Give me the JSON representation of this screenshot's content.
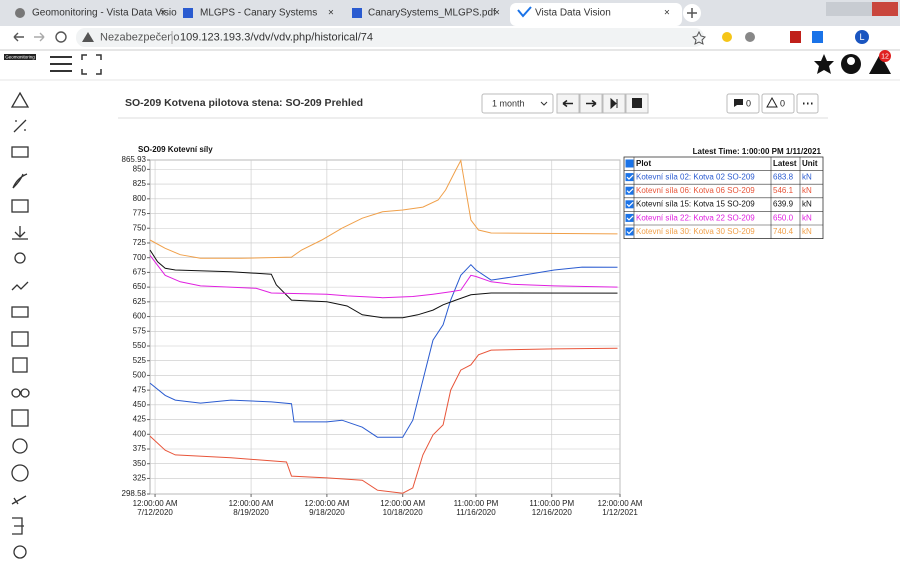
{
  "browser": {
    "tabs": [
      "Geomonitoring - Vista Data Visio",
      "MLGPS - Canary Systems",
      "CanarySystems_MLGPS.pdf",
      "Vista Data Vision"
    ],
    "security": "Nezabezpečeno",
    "url": "109.123.193.3/vdv/vdv.php/historical/74",
    "profile": "L"
  },
  "app": {
    "logo": "Geomonitoring",
    "notifications": "12",
    "page_title": "SO-209 Kotvena pilotova stena: SO-209 Prehled",
    "range": "1 month",
    "comments": "0",
    "alarms": "0"
  },
  "chart_data": {
    "type": "line",
    "title": "SO-209 Kotevní síly",
    "latest_time": "Latest Time: 1:00:00 PM 1/11/2021",
    "legend_headers": [
      "Plot",
      "Latest",
      "Unit"
    ],
    "unit": "kN",
    "xlim": [
      "2020-07-10",
      "2021-01-12"
    ],
    "xticks": [
      {
        "value": "2020-07-12",
        "label": "12:00:00 AM\n7/12/2020"
      },
      {
        "value": "2020-08-19",
        "label": "12:00:00 AM\n8/19/2020"
      },
      {
        "value": "2020-09-18",
        "label": "12:00:00 AM\n9/18/2020"
      },
      {
        "value": "2020-10-18",
        "label": "12:00:00 AM\n10/18/2020"
      },
      {
        "value": "2020-11-16",
        "label": "11:00:00 PM\n11/16/2020"
      },
      {
        "value": "2020-12-16",
        "label": "11:00:00 PM\n12/16/2020"
      },
      {
        "value": "2021-01-12",
        "label": "12:00:00 AM\n1/12/2021"
      }
    ],
    "ylim": [
      298.58,
      865.93
    ],
    "yticks": [
      298.58,
      325,
      350,
      375,
      400,
      425,
      450,
      475,
      500,
      525,
      550,
      575,
      600,
      625,
      650,
      675,
      700,
      725,
      750,
      775,
      800,
      825,
      850,
      865.93
    ],
    "grid": true,
    "series": [
      {
        "name": "Kotevní síla 02: Kotva 02 SO-209",
        "color": "#2a5bd0",
        "latest": "683.8",
        "x": [
          "2020-07-10",
          "2020-07-16",
          "2020-07-20",
          "2020-07-30",
          "2020-08-11",
          "2020-08-27",
          "2020-09-04",
          "2020-09-05",
          "2020-09-18",
          "2020-09-24",
          "2020-10-02",
          "2020-10-08",
          "2020-10-18",
          "2020-10-22",
          "2020-10-26",
          "2020-10-30",
          "2020-11-03",
          "2020-11-06",
          "2020-11-10",
          "2020-11-14",
          "2020-11-16",
          "2020-11-22",
          "2020-11-30",
          "2020-12-17",
          "2020-12-28",
          "2021-01-11"
        ],
        "values": [
          487,
          466,
          458,
          453,
          458,
          455,
          452,
          421,
          421,
          424,
          412,
          395,
          395,
          424,
          492,
          560,
          586,
          628,
          670,
          688,
          679,
          662,
          667,
          679,
          684,
          683.8
        ]
      },
      {
        "name": "Kotevní síla 06: Kotva 06 SO-209",
        "color": "#e8553a",
        "latest": "546.1",
        "x": [
          "2020-07-10",
          "2020-07-16",
          "2020-07-20",
          "2020-08-11",
          "2020-09-02",
          "2020-09-04",
          "2020-09-18",
          "2020-10-02",
          "2020-10-08",
          "2020-10-18",
          "2020-10-22",
          "2020-10-26",
          "2020-10-30",
          "2020-11-03",
          "2020-11-06",
          "2020-11-10",
          "2020-11-14",
          "2020-11-17",
          "2020-11-22",
          "2020-12-17",
          "2021-01-11"
        ],
        "values": [
          397,
          373,
          365,
          360,
          353,
          329,
          326,
          322,
          305,
          300,
          309,
          365,
          399,
          416,
          475,
          509,
          518,
          535,
          543,
          545,
          546.1
        ]
      },
      {
        "name": "Kotevní síla 15: Kotva 15 SO-209",
        "color": "#111111",
        "latest": "639.9",
        "x": [
          "2020-07-10",
          "2020-07-13",
          "2020-07-16",
          "2020-07-20",
          "2020-08-11",
          "2020-08-27",
          "2020-08-29",
          "2020-09-04",
          "2020-09-18",
          "2020-09-26",
          "2020-10-02",
          "2020-10-10",
          "2020-10-18",
          "2020-10-24",
          "2020-10-30",
          "2020-11-03",
          "2020-11-08",
          "2020-11-14",
          "2020-11-22",
          "2021-01-11"
        ],
        "values": [
          713,
          693,
          682,
          679,
          676,
          672,
          654,
          628,
          625,
          618,
          603,
          598,
          598,
          603,
          611,
          620,
          628,
          637,
          640,
          639.9
        ]
      },
      {
        "name": "Kotevní síla 22: Kotva 22 SO-209",
        "color": "#e020e0",
        "latest": "650.0",
        "x": [
          "2020-07-10",
          "2020-07-16",
          "2020-07-22",
          "2020-07-30",
          "2020-08-21",
          "2020-08-27",
          "2020-09-18",
          "2020-09-26",
          "2020-10-10",
          "2020-10-22",
          "2020-10-30",
          "2020-11-06",
          "2020-11-10",
          "2020-11-14",
          "2020-11-16",
          "2020-11-22",
          "2020-11-30",
          "2020-12-17",
          "2021-01-11"
        ],
        "values": [
          704,
          670,
          659,
          652,
          648,
          640,
          638,
          635,
          632,
          634,
          638,
          642,
          645,
          670,
          668,
          659,
          655,
          652,
          650
        ]
      },
      {
        "name": "Kotevní síla 30: Kotva 30 SO-209",
        "color": "#f0a04a",
        "latest": "740.4",
        "x": [
          "2020-07-10",
          "2020-07-16",
          "2020-07-22",
          "2020-07-30",
          "2020-08-15",
          "2020-09-04",
          "2020-09-08",
          "2020-09-16",
          "2020-09-24",
          "2020-10-02",
          "2020-10-10",
          "2020-10-18",
          "2020-10-26",
          "2020-11-01",
          "2020-11-04",
          "2020-11-08",
          "2020-11-10",
          "2020-11-11",
          "2020-11-14",
          "2020-11-17",
          "2020-11-22",
          "2021-01-11"
        ],
        "values": [
          730,
          716,
          705,
          699,
          699,
          701,
          713,
          730,
          750,
          767,
          778,
          781,
          786,
          798,
          815,
          849,
          865,
          840,
          764,
          747,
          742,
          740.4
        ]
      }
    ]
  }
}
